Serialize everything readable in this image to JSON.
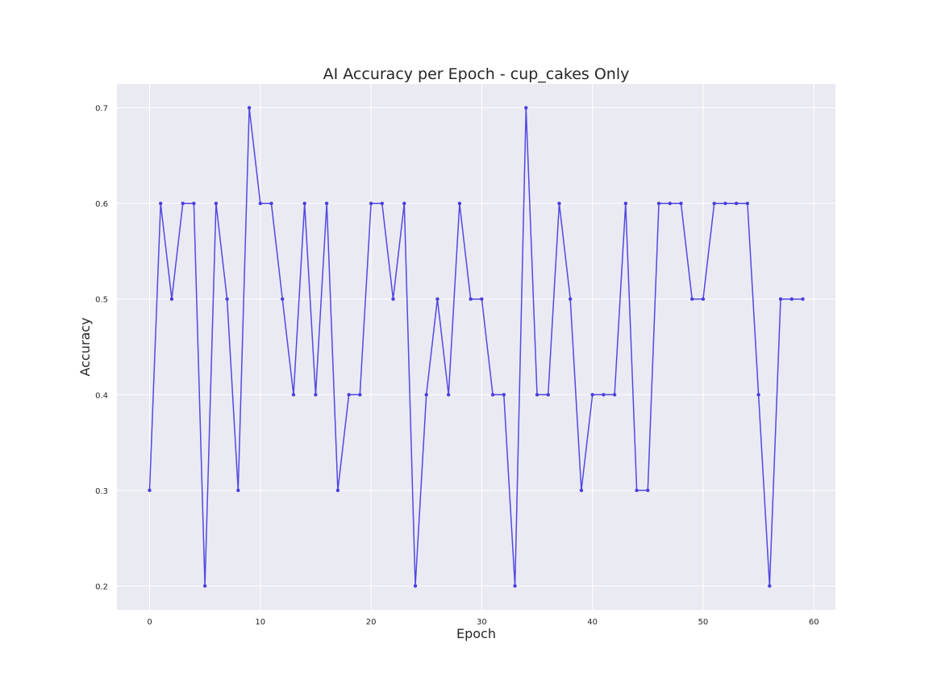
{
  "chart_data": {
    "type": "line",
    "title": "AI Accuracy per Epoch - cup_cakes Only",
    "xlabel": "Epoch",
    "ylabel": "Accuracy",
    "xlim": [
      -2.95,
      61.95
    ],
    "ylim": [
      0.175,
      0.725
    ],
    "xticks": [
      0,
      10,
      20,
      30,
      40,
      50,
      60
    ],
    "yticks": [
      0.2,
      0.3,
      0.4,
      0.5,
      0.6,
      0.7
    ],
    "xtick_labels": [
      "0",
      "10",
      "20",
      "30",
      "40",
      "50",
      "60"
    ],
    "ytick_labels": [
      "0.2",
      "0.3",
      "0.4",
      "0.5",
      "0.6",
      "0.7"
    ],
    "grid": true,
    "legend": "none",
    "colors": {
      "line": "#4b3fe0",
      "plot_bg": "#eaeaf2",
      "grid": "#ffffff"
    },
    "series": [
      {
        "x": [
          0,
          1,
          2,
          3,
          4,
          5,
          6,
          7,
          8,
          9,
          10,
          11,
          12,
          13,
          14,
          15,
          16,
          17,
          18,
          19,
          20,
          21,
          22,
          23,
          24,
          25,
          26,
          27,
          28,
          29,
          30,
          31,
          32,
          33,
          34,
          35,
          36,
          37,
          38,
          39,
          40,
          41,
          42,
          43,
          44,
          45,
          46,
          47,
          48,
          49,
          50,
          51,
          52,
          53,
          54,
          55,
          56,
          57,
          58,
          59
        ],
        "values": [
          0.3,
          0.6,
          0.5,
          0.6,
          0.6,
          0.2,
          0.6,
          0.5,
          0.3,
          0.7,
          0.6,
          0.6,
          0.5,
          0.4,
          0.6,
          0.4,
          0.6,
          0.3,
          0.4,
          0.4,
          0.6,
          0.6,
          0.5,
          0.6,
          0.2,
          0.4,
          0.5,
          0.4,
          0.6,
          0.5,
          0.5,
          0.4,
          0.4,
          0.2,
          0.7,
          0.4,
          0.4,
          0.6,
          0.5,
          0.3,
          0.4,
          0.4,
          0.4,
          0.6,
          0.3,
          0.3,
          0.6,
          0.6,
          0.6,
          0.5,
          0.5,
          0.6,
          0.6,
          0.6,
          0.6,
          0.4,
          0.2,
          0.5,
          0.5,
          0.5
        ]
      }
    ]
  }
}
